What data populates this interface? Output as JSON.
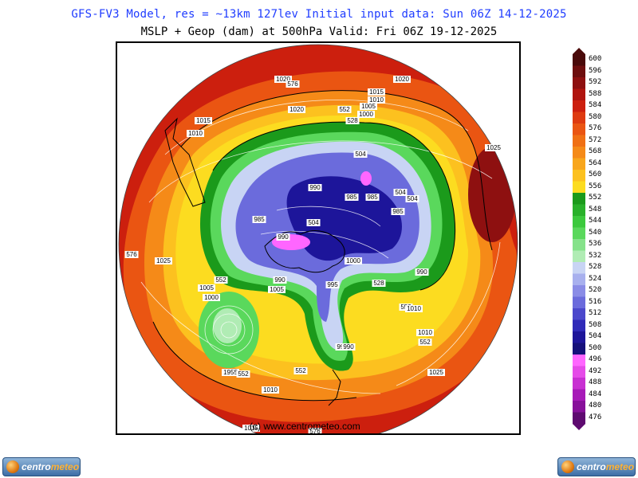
{
  "header": {
    "title_line1": "GFS-FV3 Model, res = ~13km 127lev    Initial input data: Sun 06Z 14-12-2025",
    "title_line2": "MSLP + Geop (dam) at 500hPa  Valid: Fri 06Z 19-12-2025"
  },
  "map": {
    "watermark": "(c) www.centrometeo.com",
    "labels": [
      {
        "text": "1020"
      },
      {
        "text": "576"
      },
      {
        "text": "1020"
      },
      {
        "text": "1015"
      },
      {
        "text": "1010"
      },
      {
        "text": "1005"
      },
      {
        "text": "1000"
      },
      {
        "text": "552"
      },
      {
        "text": "528"
      },
      {
        "text": "1015"
      },
      {
        "text": "1010"
      },
      {
        "text": "1020"
      },
      {
        "text": "1025"
      },
      {
        "text": "504"
      },
      {
        "text": "990"
      },
      {
        "text": "985"
      },
      {
        "text": "985"
      },
      {
        "text": "504"
      },
      {
        "text": "985"
      },
      {
        "text": "504"
      },
      {
        "text": "990"
      },
      {
        "text": "504"
      },
      {
        "text": "1000"
      },
      {
        "text": "990"
      },
      {
        "text": "995"
      },
      {
        "text": "528"
      },
      {
        "text": "985"
      },
      {
        "text": "1005"
      },
      {
        "text": "990"
      },
      {
        "text": "576"
      },
      {
        "text": "1025"
      },
      {
        "text": "1005"
      },
      {
        "text": "1000"
      },
      {
        "text": "552"
      },
      {
        "text": "552"
      },
      {
        "text": "1010"
      },
      {
        "text": "1010"
      },
      {
        "text": "552"
      },
      {
        "text": "990"
      },
      {
        "text": "1025"
      },
      {
        "text": "1955"
      },
      {
        "text": "552"
      },
      {
        "text": "552"
      },
      {
        "text": "1010"
      },
      {
        "text": "1015"
      },
      {
        "text": "576"
      },
      {
        "text": "990"
      }
    ]
  },
  "colorbar": {
    "labels": [
      "600",
      "596",
      "592",
      "588",
      "584",
      "580",
      "576",
      "572",
      "568",
      "564",
      "560",
      "556",
      "552",
      "548",
      "544",
      "540",
      "536",
      "532",
      "528",
      "524",
      "520",
      "516",
      "512",
      "508",
      "504",
      "500",
      "496",
      "492",
      "488",
      "484",
      "480",
      "476"
    ],
    "colors": [
      "#4a0a0a",
      "#6e0e0e",
      "#8e1010",
      "#b0140f",
      "#cc1f0e",
      "#de3a10",
      "#ea5512",
      "#f07014",
      "#f58a18",
      "#f8a61c",
      "#fcc11f",
      "#fcdc20",
      "#1b9a1b",
      "#29b12a",
      "#3cc93d",
      "#5ad85c",
      "#85e28a",
      "#b0ecb4",
      "#c8d4f4",
      "#a8b0ee",
      "#8a8ce6",
      "#6b6bdc",
      "#4b48cc",
      "#2f2ab8",
      "#1d159a",
      "#15107a",
      "#ff66ff",
      "#e54be8",
      "#c830d2",
      "#a71ab8",
      "#87109a",
      "#5e0a70"
    ]
  },
  "logos": {
    "left_brand_a": "centro",
    "left_brand_b": "meteo",
    "right_brand_a": "centro",
    "right_brand_b": "meteo"
  }
}
